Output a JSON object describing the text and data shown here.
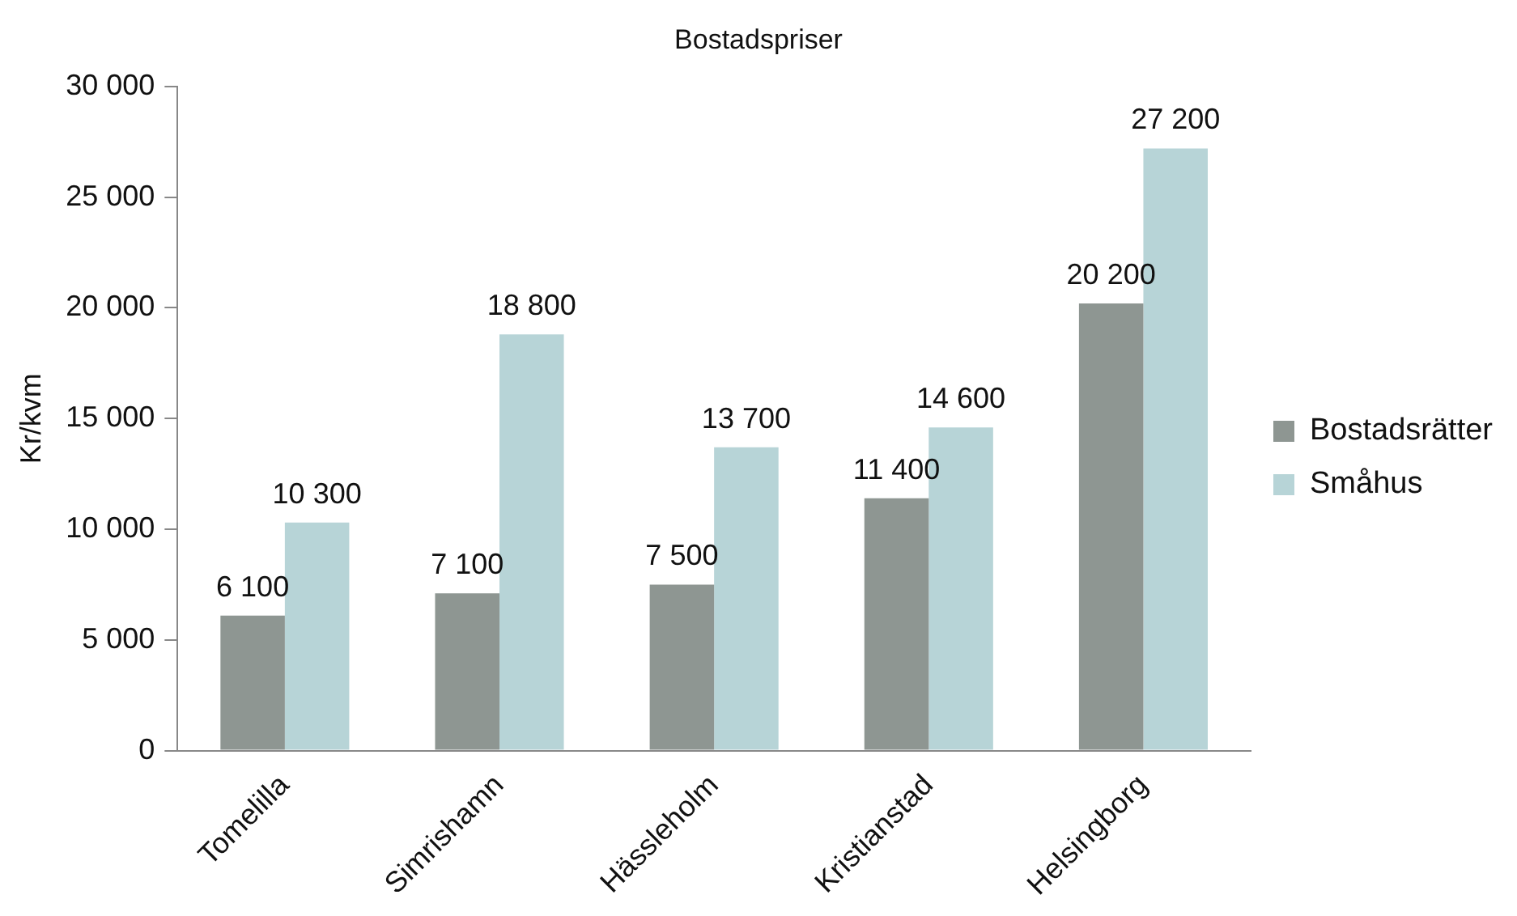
{
  "chart_data": {
    "type": "bar",
    "title": "Bostadspriser",
    "ylabel": "Kr/kvm",
    "categories": [
      "Tomelilla",
      "Simrishamn",
      "Hässleholm",
      "Kristianstad",
      "Helsingborg"
    ],
    "series": [
      {
        "name": "Bostadsrätter",
        "color": "#8e9692",
        "values": [
          6100,
          7100,
          7500,
          11400,
          20200
        ],
        "value_labels": [
          "6 100",
          "7 100",
          "7 500",
          "11 400",
          "20 200"
        ]
      },
      {
        "name": "Småhus",
        "color": "#b7d4d7",
        "values": [
          10300,
          18800,
          13700,
          14600,
          27200
        ],
        "value_labels": [
          "10 300",
          "18 800",
          "13 700",
          "14 600",
          "27 200"
        ]
      }
    ],
    "ylim": [
      0,
      30000
    ],
    "yticks": [
      {
        "value": 0,
        "label": "0"
      },
      {
        "value": 5000,
        "label": "5 000"
      },
      {
        "value": 10000,
        "label": "10 000"
      },
      {
        "value": 15000,
        "label": "15 000"
      },
      {
        "value": 20000,
        "label": "20 000"
      },
      {
        "value": 25000,
        "label": "25 000"
      },
      {
        "value": 30000,
        "label": "30 000"
      }
    ],
    "grid": false,
    "legend": "right"
  }
}
